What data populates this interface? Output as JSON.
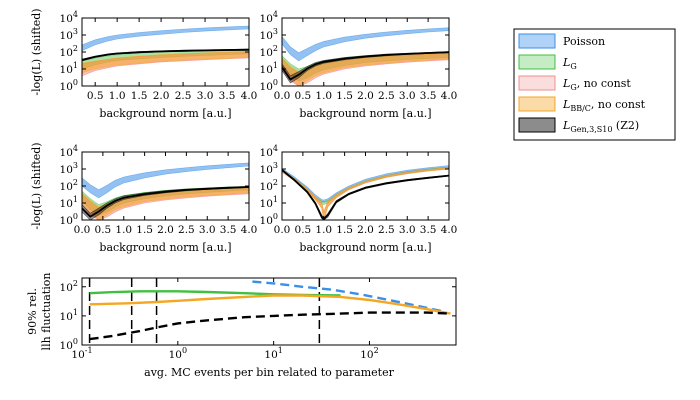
{
  "chart_data": [
    {
      "type": "area",
      "panel": "top-left",
      "xlabel": "background norm [a.u.]",
      "ylabel": "-log(L) (shifted)",
      "xlim": [
        0.2,
        4.0
      ],
      "ylim": [
        1,
        10000
      ],
      "yscale": "log",
      "xticks": [
        "0.5",
        "1.0",
        "1.5",
        "2.0",
        "2.5",
        "3.0",
        "3.5",
        "4.0"
      ],
      "yticks": [
        "10^0",
        "10^1",
        "10^2",
        "10^3",
        "10^4"
      ],
      "x": [
        0.2,
        0.5,
        0.8,
        1.0,
        1.5,
        2.0,
        2.5,
        3.0,
        3.5,
        4.0
      ],
      "series": [
        {
          "name": "Poisson",
          "low": [
            120,
            260,
            450,
            580,
            850,
            1100,
            1400,
            1700,
            2000,
            2300
          ],
          "high": [
            260,
            520,
            800,
            1000,
            1400,
            1800,
            2200,
            2600,
            3000,
            3400
          ]
        },
        {
          "name": "L_G",
          "low": [
            10,
            18,
            26,
            32,
            40,
            48,
            56,
            62,
            70,
            78
          ],
          "high": [
            30,
            45,
            58,
            68,
            85,
            100,
            115,
            128,
            140,
            150
          ]
        },
        {
          "name": "L_G, no const",
          "low": [
            4,
            8,
            12,
            15,
            20,
            26,
            30,
            35,
            40,
            45
          ],
          "high": [
            20,
            28,
            36,
            42,
            55,
            65,
            75,
            85,
            92,
            100
          ]
        },
        {
          "name": "L_BB/C, no const",
          "low": [
            6,
            10,
            14,
            17,
            22,
            28,
            33,
            38,
            42,
            48
          ],
          "high": [
            22,
            30,
            38,
            45,
            58,
            70,
            80,
            90,
            100,
            108
          ]
        },
        {
          "name": "L_Gen,3,S10 (Z2)",
          "low": [
            30,
            48,
            65,
            75,
            90,
            100,
            108,
            115,
            120,
            125
          ],
          "high": [
            38,
            58,
            78,
            88,
            105,
            118,
            128,
            135,
            142,
            148
          ]
        }
      ]
    },
    {
      "type": "area",
      "panel": "top-right",
      "xlabel": "background norm [a.u.]",
      "ylabel": "",
      "xlim": [
        0.0,
        4.0
      ],
      "ylim": [
        1,
        10000
      ],
      "yscale": "log",
      "xticks": [
        "0.0",
        "0.5",
        "1.0",
        "1.5",
        "2.0",
        "2.5",
        "3.0",
        "3.5",
        "4.0"
      ],
      "yticks": [
        "10^0",
        "10^1",
        "10^2",
        "10^3",
        "10^4"
      ],
      "x": [
        0.0,
        0.2,
        0.4,
        0.6,
        0.8,
        1.0,
        1.5,
        2.0,
        2.5,
        3.0,
        3.5,
        4.0
      ],
      "series": [
        {
          "name": "Poisson",
          "low": [
            300,
            70,
            30,
            60,
            120,
            200,
            400,
            650,
            900,
            1200,
            1500,
            1800
          ],
          "high": [
            800,
            200,
            90,
            160,
            280,
            420,
            750,
            1100,
            1500,
            1900,
            2300,
            2700
          ]
        },
        {
          "name": "L_G",
          "low": [
            20,
            5,
            2,
            3,
            6,
            9,
            16,
            24,
            30,
            36,
            42,
            48
          ],
          "high": [
            60,
            20,
            10,
            14,
            22,
            30,
            45,
            60,
            72,
            82,
            92,
            100
          ]
        },
        {
          "name": "L_G, no const",
          "low": [
            10,
            2,
            1,
            1.5,
            3,
            5,
            10,
            15,
            20,
            25,
            30,
            35
          ],
          "high": [
            40,
            12,
            6,
            8,
            14,
            20,
            32,
            45,
            55,
            65,
            72,
            80
          ]
        },
        {
          "name": "L_BB/C, no const",
          "low": [
            12,
            3,
            1,
            2,
            4,
            6,
            12,
            17,
            22,
            28,
            33,
            38
          ],
          "high": [
            45,
            14,
            7,
            10,
            16,
            24,
            36,
            48,
            60,
            70,
            78,
            85
          ]
        },
        {
          "name": "L_Gen,3,S10 (Z2)",
          "low": [
            8,
            1.5,
            3,
            8,
            15,
            22,
            35,
            48,
            60,
            70,
            80,
            90
          ],
          "high": [
            20,
            4,
            7,
            14,
            24,
            32,
            48,
            62,
            75,
            85,
            95,
            105
          ]
        }
      ]
    },
    {
      "type": "area",
      "panel": "middle-left",
      "xlabel": "background norm [a.u.]",
      "ylabel": "-log(L) (shifted)",
      "xlim": [
        0.0,
        4.0
      ],
      "ylim": [
        1,
        10000
      ],
      "yscale": "log",
      "xticks": [
        "0.0",
        "0.5",
        "1.0",
        "1.5",
        "2.0",
        "2.5",
        "3.0",
        "3.5",
        "4.0"
      ],
      "yticks": [
        "10^0",
        "10^1",
        "10^2",
        "10^3",
        "10^4"
      ],
      "x": [
        0.0,
        0.2,
        0.4,
        0.6,
        0.8,
        1.0,
        1.5,
        2.0,
        2.5,
        3.0,
        3.5,
        4.0
      ],
      "series": [
        {
          "name": "Poisson",
          "low": [
            100,
            40,
            20,
            40,
            90,
            150,
            300,
            500,
            700,
            950,
            1200,
            1500
          ],
          "high": [
            300,
            120,
            60,
            110,
            220,
            340,
            600,
            900,
            1200,
            1550,
            1900,
            2300
          ]
        },
        {
          "name": "L_G",
          "low": [
            15,
            4,
            2,
            3,
            6,
            10,
            18,
            26,
            34,
            42,
            50,
            58
          ],
          "high": [
            50,
            18,
            8,
            12,
            20,
            28,
            42,
            56,
            68,
            78,
            88,
            96
          ]
        },
        {
          "name": "L_G, no const",
          "low": [
            8,
            2,
            1,
            1.5,
            3,
            5,
            10,
            15,
            20,
            25,
            30,
            35
          ],
          "high": [
            32,
            12,
            5,
            7,
            12,
            18,
            28,
            40,
            50,
            60,
            68,
            75
          ]
        },
        {
          "name": "L_BB/C, no const",
          "low": [
            10,
            3,
            1,
            2,
            4,
            6,
            12,
            17,
            23,
            28,
            33,
            38
          ],
          "high": [
            38,
            14,
            6,
            9,
            14,
            20,
            32,
            44,
            55,
            65,
            72,
            80
          ]
        },
        {
          "name": "L_Gen,3,S10 (Z2)",
          "low": [
            3,
            1,
            2,
            5,
            10,
            16,
            28,
            40,
            52,
            62,
            72,
            80
          ],
          "high": [
            8,
            2.5,
            5,
            10,
            18,
            26,
            40,
            54,
            66,
            76,
            86,
            95
          ]
        }
      ]
    },
    {
      "type": "area",
      "panel": "middle-right",
      "xlabel": "background norm [a.u.]",
      "ylabel": "",
      "xlim": [
        0.0,
        4.0
      ],
      "ylim": [
        1,
        10000
      ],
      "yscale": "log",
      "xticks": [
        "0.0",
        "0.5",
        "1.0",
        "1.5",
        "2.0",
        "2.5",
        "3.0",
        "3.5",
        "4.0"
      ],
      "yticks": [
        "10^0",
        "10^1",
        "10^2",
        "10^3",
        "10^4"
      ],
      "x": [
        0.0,
        0.3,
        0.6,
        0.8,
        0.95,
        1.0,
        1.1,
        1.3,
        1.6,
        2.0,
        2.5,
        3.0,
        3.5,
        4.0
      ],
      "series": [
        {
          "name": "Poisson",
          "low": [
            900,
            280,
            70,
            22,
            12,
            11,
            13,
            30,
            80,
            200,
            420,
            700,
            1000,
            1300
          ],
          "high": [
            1100,
            340,
            90,
            30,
            16,
            15,
            18,
            40,
            100,
            250,
            520,
            850,
            1200,
            1600
          ]
        },
        {
          "name": "L_G",
          "low": [
            700,
            220,
            55,
            17,
            9,
            8,
            10,
            24,
            65,
            160,
            340,
            560,
            800,
            1050
          ],
          "high": [
            900,
            280,
            72,
            23,
            13,
            12,
            14,
            32,
            82,
            200,
            420,
            690,
            980,
            1280
          ]
        },
        {
          "name": "L_G, no const",
          "low": [
            650,
            200,
            50,
            15,
            5,
            1,
            6,
            20,
            60,
            150,
            320,
            520,
            750,
            980
          ],
          "high": [
            850,
            260,
            68,
            22,
            11,
            3,
            12,
            30,
            78,
            190,
            400,
            660,
            940,
            1220
          ]
        },
        {
          "name": "L_BB/C, no const",
          "low": [
            680,
            210,
            52,
            16,
            5,
            1,
            6,
            21,
            62,
            155,
            330,
            540,
            770,
            1000
          ],
          "high": [
            880,
            270,
            70,
            23,
            12,
            3,
            13,
            31,
            80,
            195,
            410,
            670,
            950,
            1240
          ]
        },
        {
          "name": "L_Gen,3,S10 (Z2)",
          "low": [
            800,
            200,
            40,
            8,
            1.2,
            1,
            1.5,
            10,
            30,
            70,
            130,
            200,
            280,
            380
          ],
          "high": [
            950,
            240,
            50,
            11,
            2,
            1.3,
            2.5,
            14,
            38,
            88,
            160,
            240,
            330,
            440
          ]
        }
      ]
    },
    {
      "type": "line",
      "panel": "bottom",
      "xlabel": "avg. MC events per bin related to parameter",
      "ylabel": "90% rel. llh fluctuation",
      "xscale": "log",
      "yscale": "log",
      "xlim": [
        0.1,
        800
      ],
      "ylim": [
        1,
        200
      ],
      "xticks": [
        "10^-1",
        "10^0",
        "10^1",
        "10^2"
      ],
      "yticks": [
        "10^0",
        "10^1",
        "10^2"
      ],
      "vlines_x": [
        0.12,
        0.33,
        0.6,
        30
      ],
      "series": [
        {
          "name": "Poisson",
          "style": "dashed",
          "x": [
            6,
            10,
            20,
            40,
            80,
            160,
            320,
            600
          ],
          "y": [
            150,
            130,
            100,
            80,
            55,
            35,
            22,
            14
          ]
        },
        {
          "name": "L_G",
          "style": "solid",
          "x": [
            0.12,
            0.2,
            0.4,
            0.6,
            1,
            2,
            5,
            10,
            20,
            50
          ],
          "y": [
            60,
            65,
            70,
            70,
            70,
            66,
            60,
            55,
            52,
            50
          ]
        },
        {
          "name": "L_BB/C, no const",
          "style": "solid",
          "x": [
            0.12,
            0.3,
            0.6,
            1,
            2,
            5,
            10,
            20,
            50,
            100,
            200,
            400,
            700
          ],
          "y": [
            25,
            27,
            30,
            33,
            38,
            45,
            50,
            50,
            45,
            35,
            25,
            17,
            12
          ]
        },
        {
          "name": "L_Gen,3,S10 (Z2)",
          "style": "dashed",
          "x": [
            0.12,
            0.2,
            0.4,
            0.6,
            1,
            2,
            5,
            10,
            20,
            50,
            100,
            200,
            400,
            700
          ],
          "y": [
            1.6,
            2,
            3,
            4,
            5.5,
            7,
            9,
            10,
            11,
            12,
            13,
            13,
            13,
            12
          ]
        }
      ]
    }
  ],
  "legend": {
    "placement": "right",
    "entries": [
      {
        "label": "Poisson",
        "main": "Poisson",
        "sub": "",
        "suffix": "",
        "color": "#3a8fe8"
      },
      {
        "label": "L_G",
        "main": "L",
        "sub": "G",
        "suffix": "",
        "color": "#40c040"
      },
      {
        "label": "L_G, no const",
        "main": "L",
        "sub": "G",
        "suffix": ", no const",
        "color": "#f09090"
      },
      {
        "label": "L_BB/C, no const",
        "main": "L",
        "sub": "BB/C",
        "suffix": ", no const",
        "color": "#f5a623"
      },
      {
        "label": "L_Gen,3,S10 (Z2)",
        "main": "L",
        "sub": "Gen,3,S10",
        "suffix": " (Z2)",
        "color": "#000000"
      }
    ]
  },
  "colors": {
    "Poisson": "#3a8fe8",
    "L_G": "#40c040",
    "L_G, no const": "#f07070",
    "L_BB/C, no const": "#f5a623",
    "L_Gen,3,S10 (Z2)": "#000000"
  }
}
